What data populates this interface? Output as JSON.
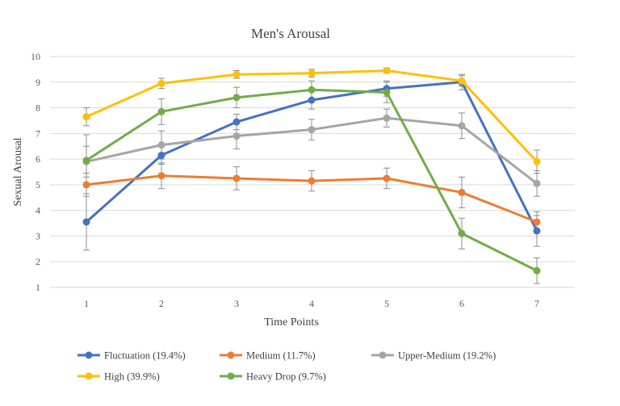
{
  "chart_data": {
    "type": "line",
    "title": "Men's Arousal",
    "xlabel": "Time Points",
    "ylabel": "Sexual Arousal",
    "categories": [
      "1",
      "2",
      "3",
      "4",
      "5",
      "6",
      "7"
    ],
    "ylim": [
      1,
      10
    ],
    "yticks": [
      1,
      2,
      3,
      4,
      5,
      6,
      7,
      8,
      9,
      10
    ],
    "grid": "horizontal",
    "legend_position": "bottom",
    "series": [
      {
        "name": "Fluctuation (19.4%)",
        "color": "#4472C4",
        "values": [
          3.55,
          6.15,
          7.45,
          8.3,
          8.75,
          9.0,
          3.2
        ],
        "error": [
          1.1,
          0.35,
          0.3,
          0.35,
          0.3,
          0.3,
          0.6
        ]
      },
      {
        "name": "Medium (11.7%)",
        "color": "#ED7D31",
        "values": [
          5.0,
          5.35,
          5.25,
          5.15,
          5.25,
          4.7,
          3.55
        ],
        "error": [
          0.45,
          0.5,
          0.45,
          0.4,
          0.4,
          0.6,
          0.4
        ]
      },
      {
        "name": "Upper-Medium (19.2%)",
        "color": "#A5A5A5",
        "values": [
          5.9,
          6.55,
          6.9,
          7.15,
          7.6,
          7.3,
          5.05
        ],
        "error": [
          0.6,
          0.55,
          0.5,
          0.4,
          0.35,
          0.5,
          0.5
        ]
      },
      {
        "name": "High (39.9%)",
        "color": "#FFC000",
        "values": [
          7.65,
          8.95,
          9.3,
          9.35,
          9.45,
          9.05,
          5.9
        ],
        "error": [
          0.35,
          0.2,
          0.15,
          0.15,
          0.1,
          0.2,
          0.45
        ]
      },
      {
        "name": "Heavy Drop (9.7%)",
        "color": "#70AD47",
        "values": [
          5.95,
          7.85,
          8.4,
          8.7,
          8.6,
          3.1,
          1.65
        ],
        "error": [
          1.0,
          0.5,
          0.4,
          0.35,
          0.4,
          0.6,
          0.5
        ]
      }
    ]
  }
}
